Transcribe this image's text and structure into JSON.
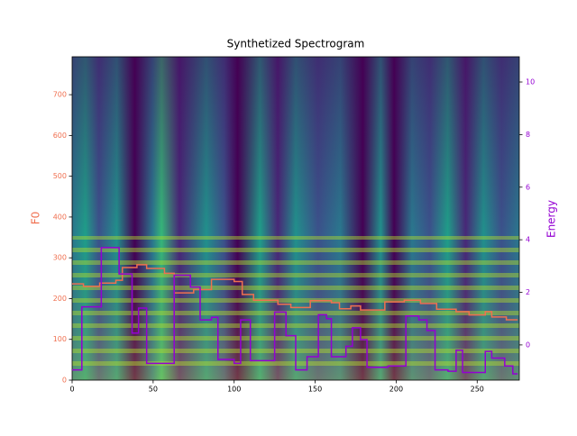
{
  "chart_data": {
    "type": "line",
    "title": "Synthetized Spectrogram",
    "ylabel": "F0",
    "y2label": "Energy",
    "xlim": [
      0,
      276
    ],
    "xticks": [
      0,
      50,
      100,
      150,
      200,
      250
    ],
    "ylim": [
      0,
      793
    ],
    "yticks": [
      0,
      100,
      200,
      300,
      400,
      500,
      600,
      700
    ],
    "y2lim": [
      -1.34,
      10.96
    ],
    "y2ticks": [
      0,
      2,
      4,
      6,
      8,
      10
    ],
    "step": true,
    "series": [
      {
        "name": "F0",
        "color": "#f07050",
        "x": [
          0,
          7,
          17,
          27,
          31,
          40,
          46,
          57,
          63,
          75,
          86,
          100,
          105,
          112,
          127,
          135,
          147,
          160,
          165,
          172,
          178,
          193,
          205,
          215,
          225,
          237,
          245,
          255,
          259,
          268,
          275
        ],
        "values": [
          236,
          230,
          238,
          245,
          276,
          283,
          274,
          262,
          214,
          222,
          247,
          242,
          210,
          196,
          186,
          178,
          195,
          190,
          175,
          182,
          172,
          192,
          196,
          188,
          174,
          168,
          160,
          168,
          155,
          148,
          148
        ]
      },
      {
        "name": "Energy",
        "color": "#9400d3",
        "axis": "y2",
        "x": [
          0,
          6,
          18,
          29,
          37,
          41,
          46,
          63,
          68,
          73,
          79,
          86,
          90,
          100,
          104,
          110,
          125,
          132,
          138,
          145,
          152,
          157,
          160,
          169,
          173,
          178,
          182,
          195,
          206,
          214,
          219,
          224,
          232,
          237,
          241,
          255,
          259,
          267,
          272,
          275
        ],
        "values": [
          -0.95,
          1.45,
          3.7,
          2.7,
          0.45,
          1.4,
          -0.7,
          2.65,
          2.65,
          2.2,
          0.95,
          1.05,
          -0.55,
          -0.7,
          0.95,
          -0.6,
          1.25,
          0.35,
          -0.95,
          -0.45,
          1.15,
          1.0,
          -0.45,
          -0.05,
          0.65,
          0.2,
          -0.85,
          -0.8,
          1.1,
          0.95,
          0.55,
          -0.95,
          -1.0,
          -0.2,
          -1.05,
          -0.25,
          -0.5,
          -0.8,
          -1.1,
          -1.1
        ]
      }
    ]
  }
}
